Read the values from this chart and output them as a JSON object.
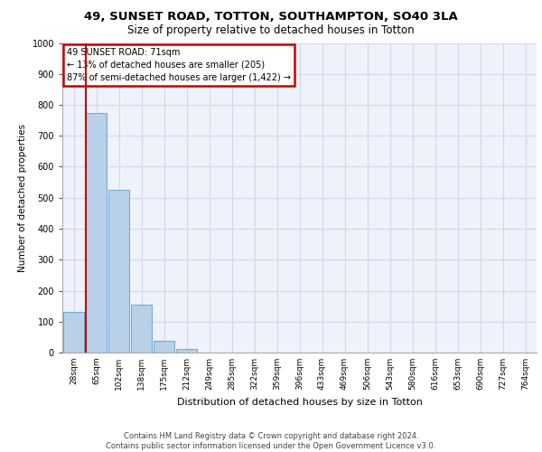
{
  "title_line1": "49, SUNSET ROAD, TOTTON, SOUTHAMPTON, SO40 3LA",
  "title_line2": "Size of property relative to detached houses in Totton",
  "xlabel": "Distribution of detached houses by size in Totton",
  "ylabel": "Number of detached properties",
  "footer_line1": "Contains HM Land Registry data © Crown copyright and database right 2024.",
  "footer_line2": "Contains public sector information licensed under the Open Government Licence v3.0.",
  "annotation_title": "49 SUNSET ROAD: 71sqm",
  "annotation_line1": "← 13% of detached houses are smaller (205)",
  "annotation_line2": "87% of semi-detached houses are larger (1,422) →",
  "bar_values": [
    130,
    775,
    525,
    155,
    37,
    12,
    0,
    0,
    0,
    0,
    0,
    0,
    0,
    0,
    0,
    0,
    0,
    0,
    0,
    0,
    0
  ],
  "categories": [
    "28sqm",
    "65sqm",
    "102sqm",
    "138sqm",
    "175sqm",
    "212sqm",
    "249sqm",
    "285sqm",
    "322sqm",
    "359sqm",
    "396sqm",
    "433sqm",
    "469sqm",
    "506sqm",
    "543sqm",
    "580sqm",
    "616sqm",
    "653sqm",
    "690sqm",
    "727sqm",
    "764sqm"
  ],
  "bar_color": "#b8d0e8",
  "bar_edge_color": "#6aaad4",
  "vline_color": "#cc0000",
  "ylim": [
    0,
    1000
  ],
  "yticks": [
    0,
    100,
    200,
    300,
    400,
    500,
    600,
    700,
    800,
    900,
    1000
  ],
  "grid_color": "#d0d8e8",
  "bg_color": "#eef2fa",
  "annotation_box_color": "#cc0000",
  "title_fontsize": 9.5,
  "subtitle_fontsize": 8.5,
  "ylabel_fontsize": 7.5,
  "xlabel_fontsize": 8,
  "tick_fontsize": 6.5,
  "annot_fontsize": 7
}
